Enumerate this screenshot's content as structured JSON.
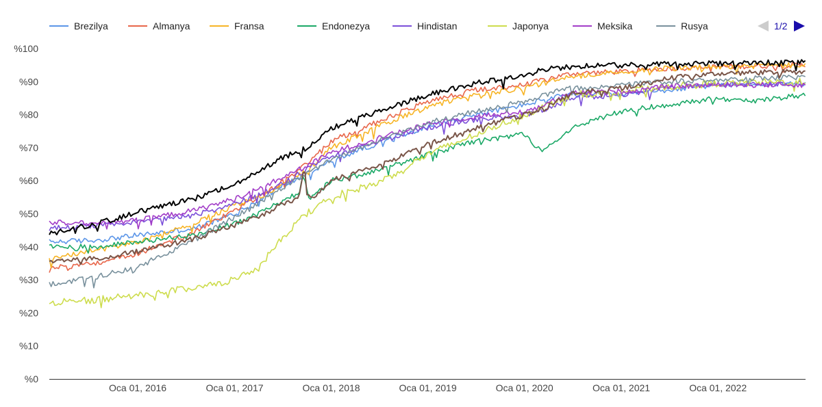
{
  "chart_data": {
    "type": "line",
    "title": "",
    "xlabel": "",
    "ylabel": "",
    "x_range": [
      "2015-02-01",
      "2022-11-28"
    ],
    "ylim": [
      0,
      100
    ],
    "y_ticks": [
      {
        "value": 0,
        "label": "%0"
      },
      {
        "value": 10,
        "label": "%10"
      },
      {
        "value": 20,
        "label": "%20"
      },
      {
        "value": 30,
        "label": "%30"
      },
      {
        "value": 40,
        "label": "%40"
      },
      {
        "value": 50,
        "label": "%50"
      },
      {
        "value": 60,
        "label": "%60"
      },
      {
        "value": 70,
        "label": "%70"
      },
      {
        "value": 80,
        "label": "%80"
      },
      {
        "value": 90,
        "label": "%90"
      },
      {
        "value": 100,
        "label": "%100"
      }
    ],
    "x_ticks": [
      {
        "value": "2016-01-01",
        "label": "Oca 01, 2016"
      },
      {
        "value": "2017-01-01",
        "label": "Oca 01, 2017"
      },
      {
        "value": "2018-01-01",
        "label": "Oca 01, 2018"
      },
      {
        "value": "2019-01-01",
        "label": "Oca 01, 2019"
      },
      {
        "value": "2020-01-01",
        "label": "Oca 01, 2020"
      },
      {
        "value": "2021-01-01",
        "label": "Oca 01, 2021"
      },
      {
        "value": "2022-01-01",
        "label": "Oca 01, 2022"
      }
    ],
    "grid": false,
    "legend_position": "top",
    "legend_pager": "1/2",
    "series": [
      {
        "name": "Brezilya",
        "color": "#5b95e8",
        "in_legend": true,
        "points": [
          [
            "2015-02-01",
            41.5
          ],
          [
            "2015-08-01",
            42
          ],
          [
            "2016-01-01",
            43.5
          ],
          [
            "2016-08-01",
            45.5
          ],
          [
            "2017-01-01",
            50
          ],
          [
            "2017-04-01",
            54
          ],
          [
            "2017-07-01",
            58.5
          ],
          [
            "2017-10-01",
            62
          ],
          [
            "2018-01-01",
            66
          ],
          [
            "2018-07-01",
            71.5
          ],
          [
            "2019-01-01",
            76.5
          ],
          [
            "2019-07-01",
            80
          ],
          [
            "2020-01-01",
            83
          ],
          [
            "2020-04-01",
            85
          ],
          [
            "2020-07-01",
            86
          ],
          [
            "2021-01-01",
            86
          ],
          [
            "2021-07-01",
            87.5
          ],
          [
            "2022-01-01",
            89
          ],
          [
            "2022-11-28",
            89.5
          ]
        ]
      },
      {
        "name": "Almanya",
        "color": "#e8664a",
        "in_legend": true,
        "points": [
          [
            "2015-02-01",
            33.5
          ],
          [
            "2015-08-01",
            35
          ],
          [
            "2016-01-01",
            38
          ],
          [
            "2016-08-01",
            44.5
          ],
          [
            "2017-01-01",
            51
          ],
          [
            "2017-04-01",
            55
          ],
          [
            "2017-07-01",
            59.5
          ],
          [
            "2017-10-01",
            65
          ],
          [
            "2018-01-01",
            72
          ],
          [
            "2018-07-01",
            78
          ],
          [
            "2019-01-01",
            84
          ],
          [
            "2019-07-01",
            87.5
          ],
          [
            "2020-01-01",
            89
          ],
          [
            "2020-04-01",
            91
          ],
          [
            "2020-07-01",
            92.5
          ],
          [
            "2021-01-01",
            93
          ],
          [
            "2021-07-01",
            94
          ],
          [
            "2022-01-01",
            94.5
          ],
          [
            "2022-11-28",
            95
          ]
        ]
      },
      {
        "name": "Fransa",
        "color": "#f7b425",
        "in_legend": true,
        "points": [
          [
            "2015-02-01",
            36.5
          ],
          [
            "2015-08-01",
            39
          ],
          [
            "2016-01-01",
            41.5
          ],
          [
            "2016-08-01",
            47
          ],
          [
            "2017-01-01",
            52.5
          ],
          [
            "2017-04-01",
            55
          ],
          [
            "2017-07-01",
            58.5
          ],
          [
            "2017-10-01",
            63
          ],
          [
            "2018-01-01",
            70
          ],
          [
            "2018-07-01",
            76.5
          ],
          [
            "2019-01-01",
            82.5
          ],
          [
            "2019-07-01",
            86
          ],
          [
            "2020-01-01",
            88
          ],
          [
            "2020-04-01",
            90
          ],
          [
            "2020-07-01",
            91.5
          ],
          [
            "2021-01-01",
            93
          ],
          [
            "2021-07-01",
            94
          ],
          [
            "2022-01-01",
            94.5
          ],
          [
            "2022-11-28",
            95
          ]
        ]
      },
      {
        "name": "Endonezya",
        "color": "#1aa866",
        "in_legend": true,
        "points": [
          [
            "2015-02-01",
            40
          ],
          [
            "2015-08-01",
            40
          ],
          [
            "2016-01-01",
            41.5
          ],
          [
            "2016-08-01",
            43.5
          ],
          [
            "2017-01-01",
            47
          ],
          [
            "2017-04-01",
            50
          ],
          [
            "2017-07-01",
            54
          ],
          [
            "2017-09-01",
            56
          ],
          [
            "2017-09-20",
            62
          ],
          [
            "2017-10-10",
            54
          ],
          [
            "2018-01-01",
            60
          ],
          [
            "2018-07-01",
            63
          ],
          [
            "2019-01-01",
            68
          ],
          [
            "2019-07-01",
            72
          ],
          [
            "2020-01-01",
            74
          ],
          [
            "2020-03-01",
            69
          ],
          [
            "2020-07-01",
            76
          ],
          [
            "2021-01-01",
            81
          ],
          [
            "2021-07-01",
            83
          ],
          [
            "2022-01-01",
            85
          ],
          [
            "2022-05-01",
            84
          ],
          [
            "2022-11-28",
            86
          ]
        ]
      },
      {
        "name": "Hindistan",
        "color": "#7b4fd9",
        "in_legend": true,
        "points": [
          [
            "2015-02-01",
            45.5
          ],
          [
            "2015-08-01",
            46.5
          ],
          [
            "2016-01-01",
            47.5
          ],
          [
            "2016-08-01",
            49.5
          ],
          [
            "2017-01-01",
            53
          ],
          [
            "2017-04-01",
            55.5
          ],
          [
            "2017-07-01",
            59
          ],
          [
            "2017-10-01",
            63.5
          ],
          [
            "2018-01-01",
            67.5
          ],
          [
            "2018-07-01",
            72
          ],
          [
            "2019-01-01",
            76
          ],
          [
            "2019-07-01",
            78.5
          ],
          [
            "2020-01-01",
            80
          ],
          [
            "2020-04-01",
            82
          ],
          [
            "2020-07-01",
            85
          ],
          [
            "2021-01-01",
            86
          ],
          [
            "2021-07-01",
            88
          ],
          [
            "2022-01-01",
            89
          ],
          [
            "2022-11-28",
            89.5
          ]
        ]
      },
      {
        "name": "Japonya",
        "color": "#cddc4c",
        "in_legend": true,
        "points": [
          [
            "2015-02-01",
            23
          ],
          [
            "2015-08-01",
            24
          ],
          [
            "2016-01-01",
            25.5
          ],
          [
            "2016-08-01",
            27.5
          ],
          [
            "2017-01-01",
            30
          ],
          [
            "2017-04-01",
            33.5
          ],
          [
            "2017-07-01",
            43
          ],
          [
            "2017-10-01",
            50
          ],
          [
            "2018-01-01",
            55
          ],
          [
            "2018-07-01",
            59.5
          ],
          [
            "2019-01-01",
            68
          ],
          [
            "2019-07-01",
            74
          ],
          [
            "2020-01-01",
            80
          ],
          [
            "2020-04-01",
            83
          ],
          [
            "2020-07-01",
            86
          ],
          [
            "2021-01-01",
            87
          ],
          [
            "2021-07-01",
            88.5
          ],
          [
            "2022-01-01",
            89.5
          ],
          [
            "2022-11-28",
            90
          ]
        ]
      },
      {
        "name": "Meksika",
        "color": "#a23dc8",
        "in_legend": true,
        "points": [
          [
            "2015-02-01",
            47.5
          ],
          [
            "2015-08-01",
            47
          ],
          [
            "2016-01-01",
            48
          ],
          [
            "2016-08-01",
            51
          ],
          [
            "2017-01-01",
            54.5
          ],
          [
            "2017-04-01",
            57.5
          ],
          [
            "2017-07-01",
            61
          ],
          [
            "2017-10-01",
            64.5
          ],
          [
            "2018-01-01",
            68.5
          ],
          [
            "2018-07-01",
            73
          ],
          [
            "2019-01-01",
            77
          ],
          [
            "2019-07-01",
            79.5
          ],
          [
            "2020-01-01",
            81
          ],
          [
            "2020-04-01",
            83.5
          ],
          [
            "2020-07-01",
            86.5
          ],
          [
            "2021-01-01",
            87
          ],
          [
            "2021-07-01",
            88.5
          ],
          [
            "2022-01-01",
            89
          ],
          [
            "2022-11-28",
            89
          ]
        ]
      },
      {
        "name": "Rusya",
        "color": "#78909c",
        "in_legend": true,
        "points": [
          [
            "2015-02-01",
            28.5
          ],
          [
            "2015-08-01",
            31
          ],
          [
            "2016-01-01",
            34
          ],
          [
            "2016-08-01",
            42
          ],
          [
            "2017-01-01",
            49
          ],
          [
            "2017-04-01",
            53
          ],
          [
            "2017-07-01",
            58
          ],
          [
            "2017-10-01",
            62
          ],
          [
            "2018-01-01",
            66.5
          ],
          [
            "2018-07-01",
            72
          ],
          [
            "2019-01-01",
            77.5
          ],
          [
            "2019-07-01",
            81
          ],
          [
            "2020-01-01",
            84
          ],
          [
            "2020-04-01",
            86.5
          ],
          [
            "2020-07-01",
            88
          ],
          [
            "2021-01-01",
            89
          ],
          [
            "2021-07-01",
            90
          ],
          [
            "2022-01-01",
            90.5
          ],
          [
            "2022-11-28",
            91.5
          ]
        ]
      },
      {
        "name": "",
        "color": "#000000",
        "in_legend": false,
        "points": [
          [
            "2015-02-01",
            44
          ],
          [
            "2015-08-01",
            47
          ],
          [
            "2016-01-01",
            50.5
          ],
          [
            "2016-08-01",
            54.5
          ],
          [
            "2017-01-01",
            59
          ],
          [
            "2017-04-01",
            63
          ],
          [
            "2017-07-01",
            67
          ],
          [
            "2017-10-01",
            70
          ],
          [
            "2018-01-01",
            76
          ],
          [
            "2018-07-01",
            81
          ],
          [
            "2019-01-01",
            86
          ],
          [
            "2019-07-01",
            89.5
          ],
          [
            "2020-01-01",
            92
          ],
          [
            "2020-04-01",
            94
          ],
          [
            "2020-07-01",
            94.5
          ],
          [
            "2021-01-01",
            95
          ],
          [
            "2021-07-01",
            95.5
          ],
          [
            "2022-01-01",
            95.5
          ],
          [
            "2022-11-28",
            96
          ]
        ]
      },
      {
        "name": "",
        "color": "#795548",
        "in_legend": false,
        "points": [
          [
            "2015-02-01",
            35.5
          ],
          [
            "2015-08-01",
            36.5
          ],
          [
            "2016-01-01",
            38.5
          ],
          [
            "2016-08-01",
            42.5
          ],
          [
            "2017-01-01",
            46.5
          ],
          [
            "2017-04-01",
            49
          ],
          [
            "2017-07-01",
            53
          ],
          [
            "2017-09-01",
            55
          ],
          [
            "2017-09-20",
            64
          ],
          [
            "2017-10-10",
            54
          ],
          [
            "2018-01-01",
            60
          ],
          [
            "2018-07-01",
            64.5
          ],
          [
            "2019-01-01",
            71
          ],
          [
            "2019-07-01",
            76
          ],
          [
            "2020-01-01",
            80
          ],
          [
            "2020-04-01",
            82.5
          ],
          [
            "2020-07-01",
            86.5
          ],
          [
            "2021-01-01",
            88
          ],
          [
            "2021-07-01",
            91
          ],
          [
            "2022-01-01",
            92.5
          ],
          [
            "2022-11-28",
            93
          ]
        ]
      }
    ]
  }
}
